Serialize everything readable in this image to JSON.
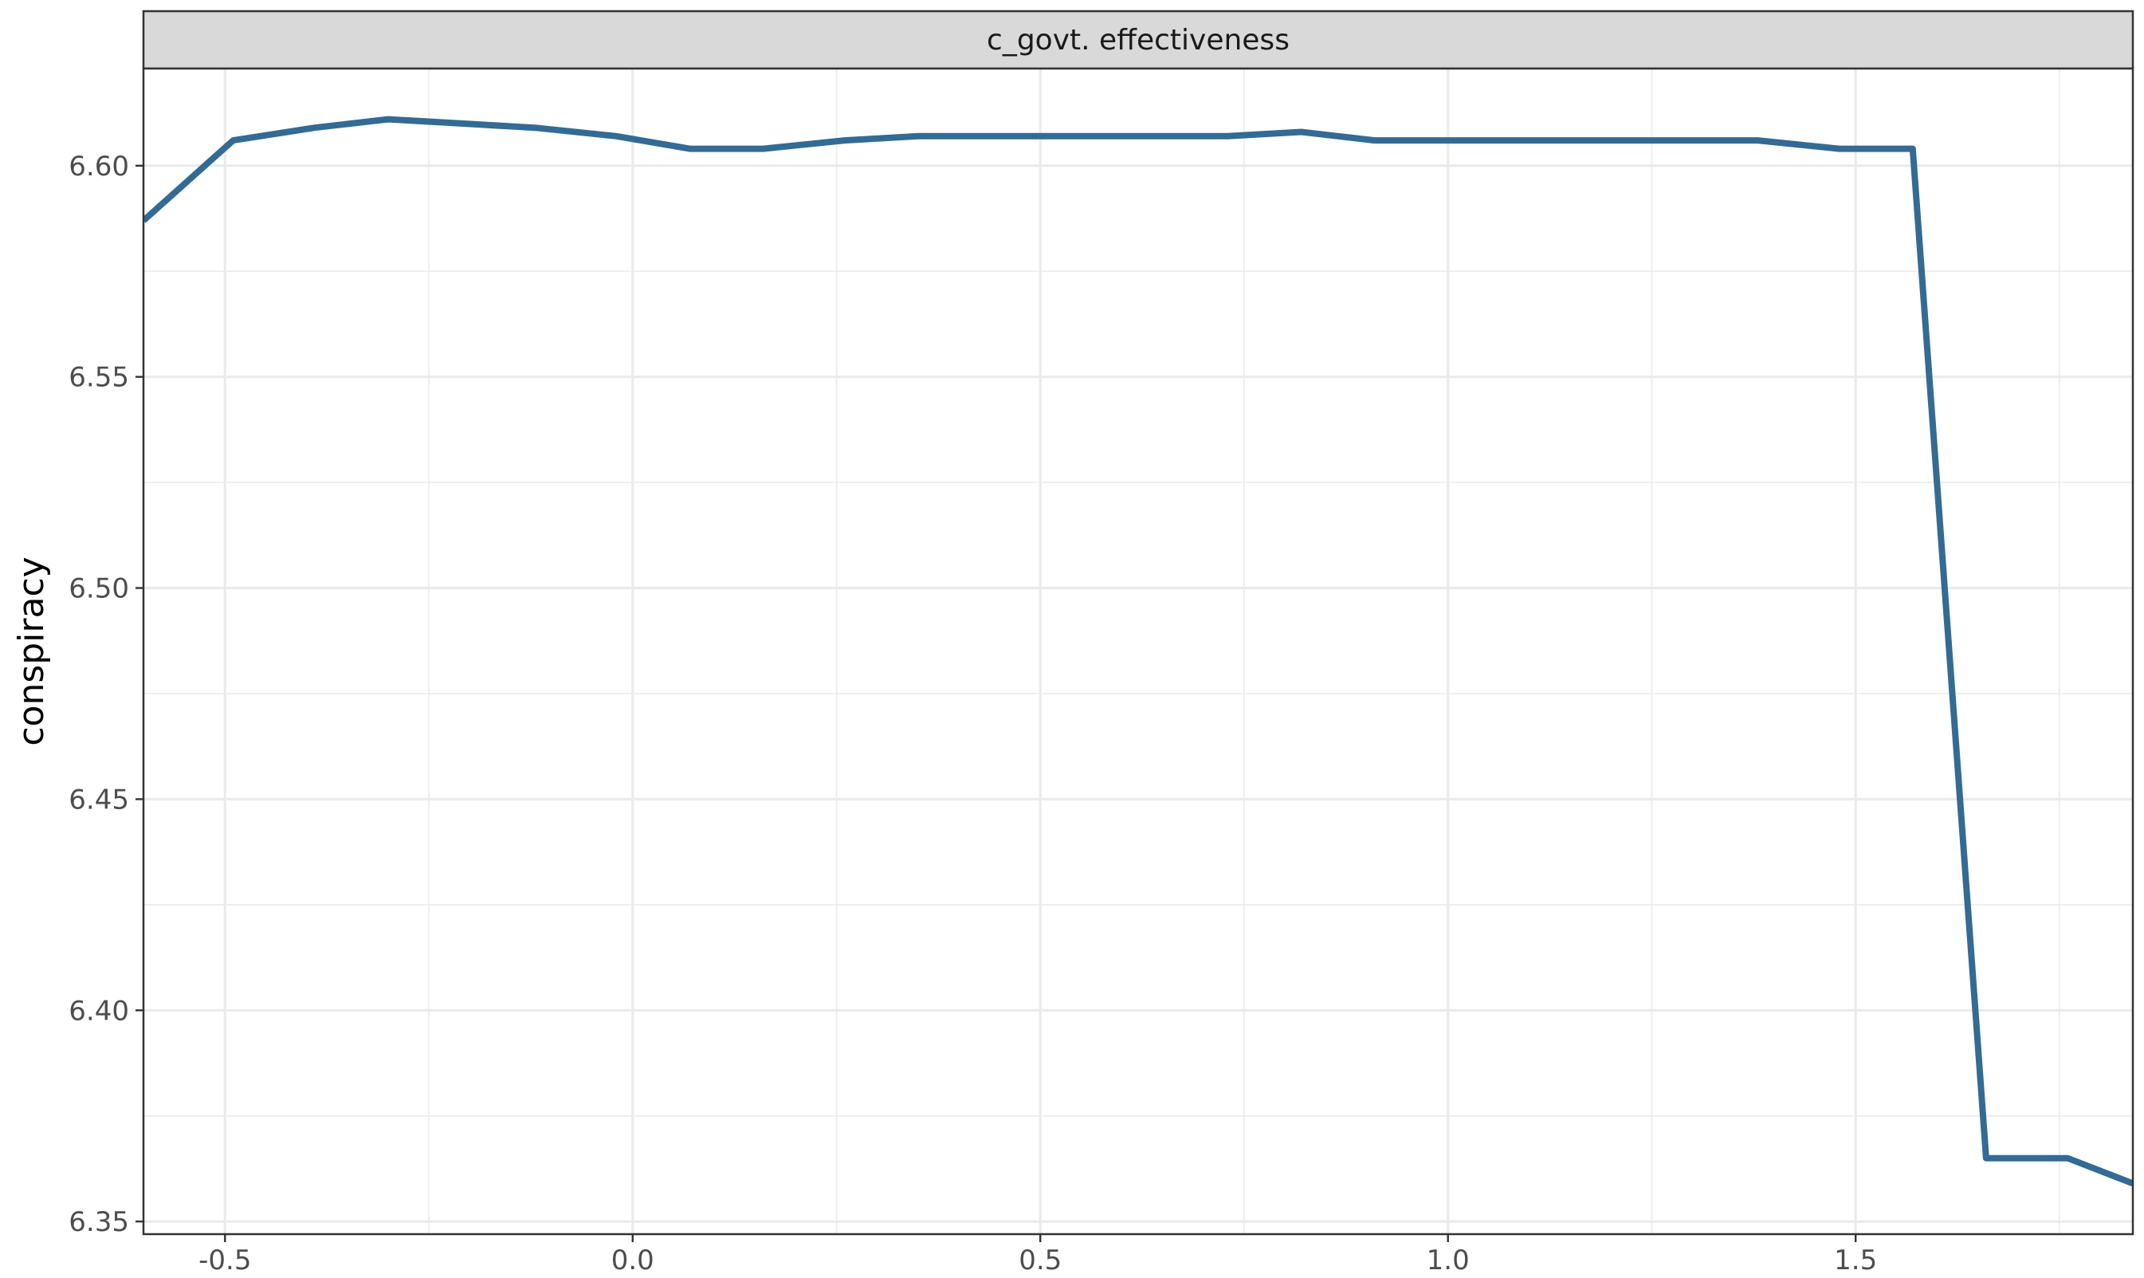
{
  "chart_data": {
    "type": "line",
    "facet_title": "c_govt. effectiveness",
    "xlabel": "",
    "ylabel": "conspiracy",
    "xlim": [
      -0.6,
      1.84
    ],
    "ylim": [
      6.347,
      6.623
    ],
    "x_ticks": [
      -0.5,
      0.0,
      0.5,
      1.0,
      1.5
    ],
    "x_tick_labels": [
      "-0.5",
      "0.0",
      "0.5",
      "1.0",
      "1.5"
    ],
    "y_ticks": [
      6.35,
      6.4,
      6.45,
      6.5,
      6.55,
      6.6
    ],
    "y_tick_labels": [
      "6.35",
      "6.40",
      "6.45",
      "6.50",
      "6.55",
      "6.60"
    ],
    "grid": true,
    "line_color": "#336b94",
    "series": [
      {
        "x": [
          -0.6,
          -0.49,
          -0.39,
          -0.3,
          -0.21,
          -0.12,
          -0.02,
          0.07,
          0.16,
          0.26,
          0.35,
          0.45,
          0.54,
          0.63,
          0.73,
          0.82,
          0.91,
          1.01,
          1.1,
          1.2,
          1.29,
          1.38,
          1.48,
          1.57,
          1.66,
          1.76,
          1.84
        ],
        "values": [
          6.587,
          6.606,
          6.609,
          6.611,
          6.61,
          6.609,
          6.607,
          6.604,
          6.604,
          6.606,
          6.607,
          6.607,
          6.607,
          6.607,
          6.607,
          6.608,
          6.606,
          6.606,
          6.606,
          6.606,
          6.606,
          6.606,
          6.604,
          6.604,
          6.365,
          6.365,
          6.359
        ]
      }
    ]
  }
}
